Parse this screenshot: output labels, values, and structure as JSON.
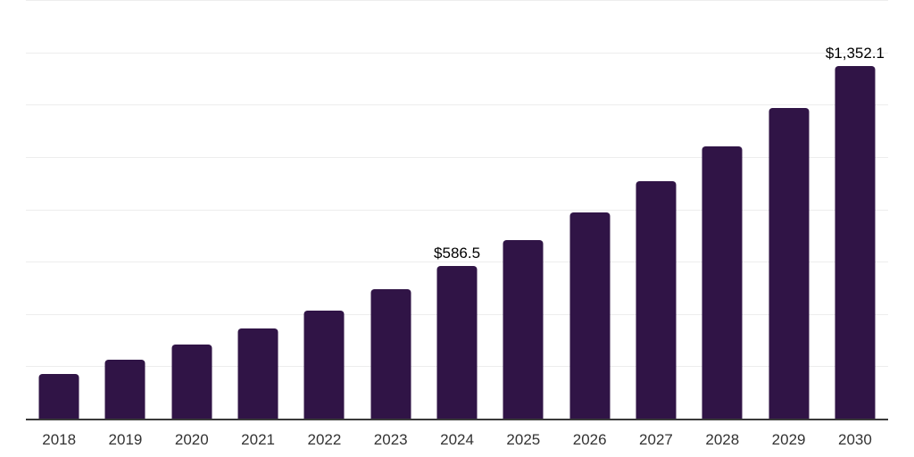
{
  "chart_data": {
    "type": "bar",
    "categories": [
      "2018",
      "2019",
      "2020",
      "2021",
      "2022",
      "2023",
      "2024",
      "2025",
      "2026",
      "2027",
      "2028",
      "2029",
      "2030"
    ],
    "values": [
      174,
      229,
      287,
      348,
      416,
      498,
      586.5,
      686,
      792,
      911,
      1044,
      1191,
      1352.1
    ],
    "value_labels": {
      "2024": "$586.5",
      "2030": "$1,352.1"
    },
    "title": "",
    "xlabel": "",
    "ylabel": "",
    "ylim": [
      0,
      1600
    ],
    "gridline_step": 200,
    "grid": true,
    "legend": "none",
    "colors": {
      "bar": "#301446",
      "value_label": "#000000",
      "x_tick_label": "#333333",
      "gridline": "#ededed",
      "axis_line": "#3a3a3a",
      "background": "#ffffff"
    }
  }
}
